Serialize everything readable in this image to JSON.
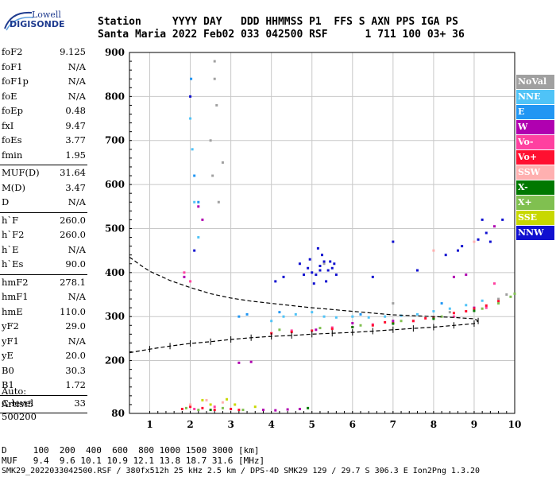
{
  "logo": {
    "top": "Lowell",
    "main": "DIGISONDE"
  },
  "header": {
    "row1": "Station     YYYY DAY   DDD HHMMSS P1  FFS S AXN PPS IGA PS",
    "row2": "Santa Maria 2022 Feb02 033 042500 RSF      1 711 100 03+ 36"
  },
  "params": [
    [
      {
        "name": "foF2",
        "value": "9.125"
      },
      {
        "name": "foF1",
        "value": "N/A"
      },
      {
        "name": "foF1p",
        "value": "N/A"
      },
      {
        "name": "foE",
        "value": "N/A"
      },
      {
        "name": "foEp",
        "value": "0.48"
      },
      {
        "name": "fxI",
        "value": "9.47"
      },
      {
        "name": "foEs",
        "value": "3.77"
      },
      {
        "name": "fmin",
        "value": "1.95"
      }
    ],
    [
      {
        "name": "MUF(D)",
        "value": "31.64"
      },
      {
        "name": "M(D)",
        "value": "3.47"
      },
      {
        "name": "D",
        "value": "N/A"
      }
    ],
    [
      {
        "name": "h`F",
        "value": "260.0"
      },
      {
        "name": "h`F2",
        "value": "260.0"
      },
      {
        "name": "h`E",
        "value": "N/A"
      },
      {
        "name": "h`Es",
        "value": "90.0"
      }
    ],
    [
      {
        "name": "hmF2",
        "value": "278.1"
      },
      {
        "name": "hmF1",
        "value": "N/A"
      },
      {
        "name": "hmE",
        "value": "110.0"
      },
      {
        "name": "yF2",
        "value": "29.0"
      },
      {
        "name": "yF1",
        "value": "N/A"
      },
      {
        "name": "yE",
        "value": "20.0"
      },
      {
        "name": "B0",
        "value": "30.3"
      },
      {
        "name": "B1",
        "value": "1.72"
      }
    ],
    [
      {
        "name": "C-level",
        "value": "33"
      }
    ]
  ],
  "auto": [
    "Auto:",
    "Artist5",
    "500200"
  ],
  "legend": [
    {
      "label": "NoVal",
      "color": "#a0a0a0"
    },
    {
      "label": "NNE",
      "color": "#4fc3f7"
    },
    {
      "label": "E",
      "color": "#2196f3"
    },
    {
      "label": "W",
      "color": "#b000b0"
    },
    {
      "label": "Vo-",
      "color": "#ff40a0"
    },
    {
      "label": "Vo+",
      "color": "#ff1030"
    },
    {
      "label": "SSW",
      "color": "#ffb0b0"
    },
    {
      "label": "X-",
      "color": "#007800"
    },
    {
      "label": "X+",
      "color": "#80c050"
    },
    {
      "label": "SSE",
      "color": "#c8d800"
    },
    {
      "label": "NNW",
      "color": "#1010d0"
    }
  ],
  "footer": {
    "dist_row": "D     100  200  400  600  800 1000 1500 3000 [km]",
    "muf_row": "MUF   9.4  9.6 10.1 10.9 12.1 13.8 18.7 31.6 [MHz]",
    "info": "SMK29_2022033042500.RSF / 380fx512h 25 kHz 2.5 km / DPS-4D SMK29 129 / 29.7 S 306.3 E Ion2Png 1.3.20"
  },
  "chart_data": {
    "type": "scatter",
    "title": "",
    "xlabel": "",
    "ylabel": "",
    "xlim": [
      0.5,
      10
    ],
    "ylim": [
      80,
      900
    ],
    "x_ticks": [
      1,
      2,
      3,
      4,
      5,
      6,
      7,
      8,
      9,
      10
    ],
    "y_ticks": [
      80,
      200,
      300,
      400,
      500,
      600,
      700,
      800,
      900
    ],
    "grid": true,
    "series": [
      {
        "name": "NoVal",
        "type": "scatter",
        "color": "#a0a0a0",
        "points": [
          [
            2.6,
            880
          ],
          [
            2.6,
            840
          ],
          [
            2.65,
            780
          ],
          [
            2.5,
            700
          ],
          [
            2.55,
            620
          ],
          [
            2.7,
            560
          ],
          [
            2.8,
            650
          ],
          [
            9.8,
            350
          ],
          [
            9.6,
            340
          ],
          [
            5.3,
            420
          ],
          [
            7.0,
            330
          ],
          [
            8.4,
            310
          ]
        ]
      },
      {
        "name": "NNE",
        "type": "scatter",
        "color": "#4fc3f7",
        "points": [
          [
            4.0,
            290
          ],
          [
            4.3,
            300
          ],
          [
            4.6,
            305
          ],
          [
            5.0,
            310
          ],
          [
            5.3,
            300
          ],
          [
            5.6,
            298
          ],
          [
            6.0,
            300
          ],
          [
            6.4,
            298
          ],
          [
            6.8,
            300
          ],
          [
            7.2,
            302
          ],
          [
            7.6,
            305
          ],
          [
            8.0,
            312
          ],
          [
            8.4,
            318
          ],
          [
            8.8,
            326
          ],
          [
            9.2,
            336
          ],
          [
            2.0,
            750
          ],
          [
            2.05,
            680
          ],
          [
            2.1,
            560
          ],
          [
            2.2,
            480
          ]
        ]
      },
      {
        "name": "E",
        "type": "scatter",
        "color": "#2196f3",
        "points": [
          [
            2.02,
            840
          ],
          [
            2.1,
            620
          ],
          [
            2.2,
            560
          ],
          [
            3.2,
            300
          ],
          [
            3.4,
            305
          ],
          [
            4.2,
            310
          ],
          [
            6.2,
            305
          ],
          [
            8.2,
            330
          ]
        ]
      },
      {
        "name": "W",
        "type": "scatter",
        "color": "#b000b0",
        "points": [
          [
            3.8,
            88
          ],
          [
            4.1,
            87
          ],
          [
            4.4,
            89
          ],
          [
            4.7,
            90
          ],
          [
            1.85,
            390
          ],
          [
            2.2,
            550
          ],
          [
            2.3,
            520
          ],
          [
            3.2,
            195
          ],
          [
            3.5,
            197
          ],
          [
            8.5,
            390
          ],
          [
            8.8,
            395
          ],
          [
            9.5,
            505
          ],
          [
            5.1,
            270
          ],
          [
            6.0,
            285
          ],
          [
            7.0,
            290
          ],
          [
            8.0,
            298
          ],
          [
            9.0,
            320
          ]
        ]
      },
      {
        "name": "Vo-",
        "type": "scatter",
        "color": "#ff40a0",
        "points": [
          [
            1.85,
            400
          ],
          [
            2.0,
            380
          ],
          [
            2.1,
            90
          ],
          [
            2.6,
            95
          ],
          [
            4.5,
            268
          ],
          [
            5.5,
            275
          ],
          [
            6.5,
            282
          ],
          [
            7.5,
            290
          ],
          [
            8.5,
            300
          ],
          [
            9.3,
            320
          ],
          [
            9.5,
            375
          ]
        ]
      },
      {
        "name": "Vo+",
        "type": "scatter",
        "color": "#ff1030",
        "points": [
          [
            1.8,
            90
          ],
          [
            2.0,
            95
          ],
          [
            2.3,
            92
          ],
          [
            2.6,
            88
          ],
          [
            3.0,
            90
          ],
          [
            3.2,
            88
          ],
          [
            4.0,
            262
          ],
          [
            4.5,
            265
          ],
          [
            5.0,
            268
          ],
          [
            5.5,
            272
          ],
          [
            6.0,
            276
          ],
          [
            6.5,
            280
          ],
          [
            7.0,
            285
          ],
          [
            7.5,
            290
          ],
          [
            8.0,
            298
          ],
          [
            8.5,
            308
          ],
          [
            9.0,
            318
          ],
          [
            9.3,
            325
          ],
          [
            9.6,
            335
          ],
          [
            6.8,
            287
          ],
          [
            7.8,
            296
          ],
          [
            8.8,
            312
          ]
        ]
      },
      {
        "name": "SSW",
        "type": "scatter",
        "color": "#ffb0b0",
        "points": [
          [
            2.0,
            100
          ],
          [
            2.4,
            110
          ],
          [
            2.8,
            105
          ],
          [
            8.0,
            450
          ],
          [
            9.0,
            470
          ]
        ]
      },
      {
        "name": "X-",
        "type": "scatter",
        "color": "#007800",
        "points": [
          [
            2.5,
            88
          ],
          [
            4.9,
            92
          ],
          [
            6.0,
            276
          ],
          [
            7.0,
            284
          ],
          [
            8.0,
            295
          ],
          [
            9.0,
            313
          ]
        ]
      },
      {
        "name": "X+",
        "type": "scatter",
        "color": "#80c050",
        "points": [
          [
            1.9,
            92
          ],
          [
            2.2,
            88
          ],
          [
            2.8,
            92
          ],
          [
            3.3,
            88
          ],
          [
            4.2,
            270
          ],
          [
            5.2,
            274
          ],
          [
            6.2,
            280
          ],
          [
            7.2,
            290
          ],
          [
            8.2,
            300
          ],
          [
            9.2,
            318
          ],
          [
            9.6,
            330
          ],
          [
            9.9,
            345
          ],
          [
            10.0,
            352
          ]
        ]
      },
      {
        "name": "SSE",
        "type": "scatter",
        "color": "#c8d800",
        "points": [
          [
            2.3,
            110
          ],
          [
            2.5,
            100
          ],
          [
            2.9,
            112
          ],
          [
            3.1,
            100
          ],
          [
            3.6,
            95
          ]
        ]
      },
      {
        "name": "NNW",
        "type": "scatter",
        "color": "#1010d0",
        "points": [
          [
            4.7,
            420
          ],
          [
            4.9,
            410
          ],
          [
            5.0,
            400
          ],
          [
            5.1,
            395
          ],
          [
            5.2,
            415
          ],
          [
            5.3,
            425
          ],
          [
            5.4,
            405
          ],
          [
            5.5,
            410
          ],
          [
            5.6,
            395
          ],
          [
            5.25,
            440
          ],
          [
            5.15,
            455
          ],
          [
            5.35,
            380
          ],
          [
            4.95,
            430
          ],
          [
            5.45,
            425
          ],
          [
            4.8,
            395
          ],
          [
            5.05,
            375
          ],
          [
            5.55,
            420
          ],
          [
            5.2,
            405
          ],
          [
            7.6,
            405
          ],
          [
            8.3,
            440
          ],
          [
            8.6,
            450
          ],
          [
            9.1,
            475
          ],
          [
            9.3,
            490
          ],
          [
            9.7,
            520
          ],
          [
            9.2,
            520
          ],
          [
            9.4,
            470
          ],
          [
            8.7,
            460
          ],
          [
            4.3,
            390
          ],
          [
            4.1,
            380
          ],
          [
            2.0,
            800
          ],
          [
            2.1,
            450
          ],
          [
            6.5,
            390
          ],
          [
            7.0,
            470
          ]
        ]
      },
      {
        "name": "",
        "type": "line",
        "style": "dashed",
        "color": "#000",
        "points": [
          [
            0.5,
            435
          ],
          [
            0.8,
            415
          ],
          [
            1.0,
            403
          ],
          [
            1.5,
            382
          ],
          [
            2.0,
            366
          ],
          [
            2.5,
            352
          ],
          [
            3.0,
            342
          ],
          [
            3.5,
            335
          ],
          [
            4.0,
            330
          ],
          [
            4.5,
            325
          ],
          [
            5.0,
            320
          ],
          [
            5.5,
            316
          ],
          [
            6.0,
            312
          ],
          [
            6.5,
            308
          ],
          [
            7.0,
            304
          ],
          [
            7.5,
            302
          ],
          [
            8.0,
            300
          ],
          [
            8.5,
            298
          ],
          [
            9.0,
            295
          ],
          [
            9.1,
            290
          ]
        ]
      },
      {
        "name": "",
        "type": "line",
        "style": "dashed",
        "color": "#000",
        "points": [
          [
            0.5,
            218
          ],
          [
            1.0,
            226
          ],
          [
            1.5,
            233
          ],
          [
            2.0,
            239
          ],
          [
            2.5,
            243
          ],
          [
            3.0,
            248
          ],
          [
            3.5,
            252
          ],
          [
            4.0,
            255
          ],
          [
            4.5,
            257
          ],
          [
            5.0,
            260
          ],
          [
            5.5,
            262
          ],
          [
            6.0,
            264
          ],
          [
            6.5,
            267
          ],
          [
            7.0,
            270
          ],
          [
            7.5,
            273
          ],
          [
            8.0,
            276
          ],
          [
            8.5,
            280
          ],
          [
            9.0,
            284
          ],
          [
            9.1,
            290
          ]
        ]
      }
    ]
  }
}
